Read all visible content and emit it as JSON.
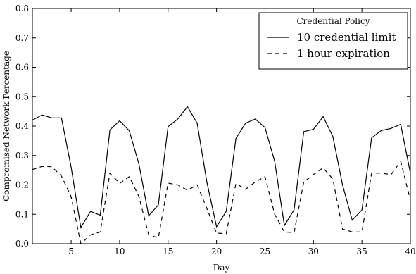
{
  "chart_data": {
    "type": "line",
    "title": "",
    "xlabel": "Day",
    "ylabel": "Compromised Network Percentage",
    "xlim": [
      1,
      40
    ],
    "ylim": [
      0.0,
      0.8
    ],
    "xticks": [
      5,
      10,
      15,
      20,
      25,
      30,
      35,
      40
    ],
    "xtick_labels": [
      "5",
      "10",
      "15",
      "20",
      "25",
      "30",
      "35",
      "40"
    ],
    "yticks": [
      0.0,
      0.1,
      0.2,
      0.3,
      0.4,
      0.5,
      0.6,
      0.7,
      0.8
    ],
    "ytick_labels": [
      "0.0",
      "0.1",
      "0.2",
      "0.3",
      "0.4",
      "0.5",
      "0.6",
      "0.7",
      "0.8"
    ],
    "grid": false,
    "legend": {
      "title": "Credential Policy",
      "placement": "top-right"
    },
    "x": [
      1,
      2,
      3,
      4,
      5,
      6,
      7,
      8,
      9,
      10,
      11,
      12,
      13,
      14,
      15,
      16,
      17,
      18,
      19,
      20,
      21,
      22,
      23,
      24,
      25,
      26,
      27,
      28,
      29,
      30,
      31,
      32,
      33,
      34,
      35,
      36,
      37,
      38,
      39,
      40
    ],
    "series": [
      {
        "name": "10 credential limit",
        "style": "solid",
        "color": "#000000",
        "values": [
          0.42,
          0.438,
          0.428,
          0.428,
          0.26,
          0.055,
          0.11,
          0.097,
          0.387,
          0.418,
          0.384,
          0.27,
          0.095,
          0.132,
          0.398,
          0.424,
          0.466,
          0.41,
          0.21,
          0.058,
          0.11,
          0.358,
          0.41,
          0.424,
          0.395,
          0.28,
          0.062,
          0.115,
          0.381,
          0.389,
          0.432,
          0.365,
          0.2,
          0.08,
          0.115,
          0.36,
          0.385,
          0.392,
          0.406,
          0.24
        ]
      },
      {
        "name": "1 hour expiration",
        "style": "dashed",
        "color": "#000000",
        "values": [
          0.252,
          0.263,
          0.262,
          0.23,
          0.16,
          0.0,
          0.03,
          0.04,
          0.24,
          0.205,
          0.228,
          0.16,
          0.03,
          0.02,
          0.206,
          0.2,
          0.182,
          0.2,
          0.12,
          0.036,
          0.034,
          0.205,
          0.185,
          0.21,
          0.228,
          0.1,
          0.04,
          0.038,
          0.21,
          0.235,
          0.258,
          0.22,
          0.05,
          0.04,
          0.04,
          0.24,
          0.24,
          0.235,
          0.28,
          0.148
        ]
      }
    ]
  }
}
